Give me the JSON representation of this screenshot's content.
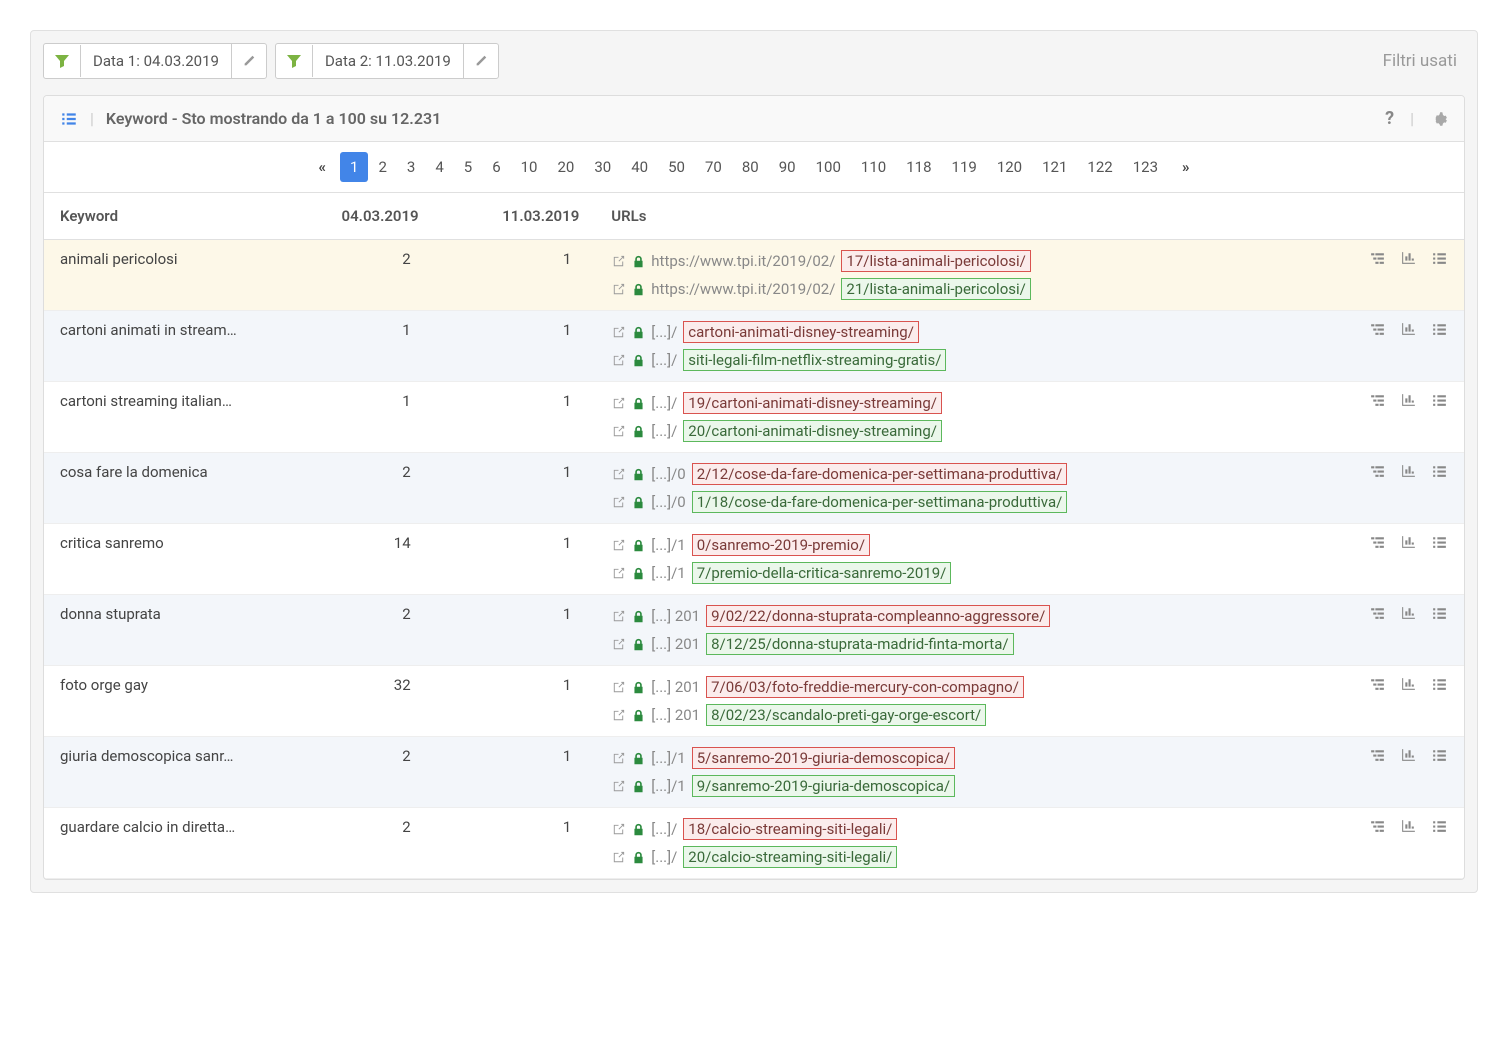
{
  "filters": {
    "data1_label": "Data 1: 04.03.2019",
    "data2_label": "Data 2: 11.03.2019",
    "used_label": "Filtri usati"
  },
  "header": {
    "title": "Keyword - Sto mostrando da 1 a 100 su 12.231"
  },
  "pagination": {
    "pages": [
      "1",
      "2",
      "3",
      "4",
      "5",
      "6",
      "10",
      "20",
      "30",
      "40",
      "50",
      "70",
      "80",
      "90",
      "100",
      "110",
      "118",
      "119",
      "120",
      "121",
      "122",
      "123"
    ]
  },
  "columns": {
    "keyword": "Keyword",
    "d1": "04.03.2019",
    "d2": "11.03.2019",
    "urls": "URLs"
  },
  "rows": [
    {
      "keyword": "animali pericolosi",
      "d1": "2",
      "d2": "1",
      "highlight": true,
      "urls": [
        {
          "prefix": "https://www.tpi.it/2019/02/",
          "boxed": "17/lista-animali-pericolosi/",
          "color": "red"
        },
        {
          "prefix": "https://www.tpi.it/2019/02/",
          "boxed": "21/lista-animali-pericolosi/",
          "color": "green"
        }
      ]
    },
    {
      "keyword": "cartoni animati in stream…",
      "d1": "1",
      "d2": "1",
      "urls": [
        {
          "prefix": "[...]/",
          "boxed": "cartoni-animati-disney-streaming/",
          "color": "red"
        },
        {
          "prefix": "[...]/",
          "boxed": "siti-legali-film-netflix-streaming-gratis/",
          "color": "green"
        }
      ]
    },
    {
      "keyword": "cartoni streaming italian…",
      "d1": "1",
      "d2": "1",
      "urls": [
        {
          "prefix": "[...]/",
          "boxed": "19/cartoni-animati-disney-streaming/",
          "color": "red"
        },
        {
          "prefix": "[...]/",
          "boxed": "20/cartoni-animati-disney-streaming/",
          "color": "green"
        }
      ]
    },
    {
      "keyword": "cosa fare la domenica",
      "d1": "2",
      "d2": "1",
      "urls": [
        {
          "prefix": "[...]/0",
          "boxed": "2/12/cose-da-fare-domenica-per-settimana-produttiva/",
          "color": "red"
        },
        {
          "prefix": "[...]/0",
          "boxed": "1/18/cose-da-fare-domenica-per-settimana-produttiva/",
          "color": "green"
        }
      ]
    },
    {
      "keyword": "critica sanremo",
      "d1": "14",
      "d2": "1",
      "urls": [
        {
          "prefix": "[...]/1",
          "boxed": "0/sanremo-2019-premio/",
          "color": "red"
        },
        {
          "prefix": "[...]/1",
          "boxed": "7/premio-della-critica-sanremo-2019/",
          "color": "green"
        }
      ]
    },
    {
      "keyword": "donna stuprata",
      "d1": "2",
      "d2": "1",
      "urls": [
        {
          "prefix": "[...] 201",
          "boxed": "9/02/22/donna-stuprata-compleanno-aggressore/",
          "color": "red"
        },
        {
          "prefix": "[...] 201",
          "boxed": "8/12/25/donna-stuprata-madrid-finta-morta/",
          "color": "green"
        }
      ]
    },
    {
      "keyword": "foto orge gay",
      "d1": "32",
      "d2": "1",
      "urls": [
        {
          "prefix": "[...] 201",
          "boxed": "7/06/03/foto-freddie-mercury-con-compagno/",
          "color": "red"
        },
        {
          "prefix": "[...] 201",
          "boxed": "8/02/23/scandalo-preti-gay-orge-escort/",
          "color": "green"
        }
      ]
    },
    {
      "keyword": "giuria demoscopica sanr…",
      "d1": "2",
      "d2": "1",
      "urls": [
        {
          "prefix": "[...]/1",
          "boxed": "5/sanremo-2019-giuria-demoscopica/",
          "color": "red"
        },
        {
          "prefix": "[...]/1",
          "boxed": "9/sanremo-2019-giuria-demoscopica/",
          "color": "green"
        }
      ]
    },
    {
      "keyword": "guardare calcio in diretta…",
      "d1": "2",
      "d2": "1",
      "urls": [
        {
          "prefix": "[...]/",
          "boxed": "18/calcio-streaming-siti-legali/",
          "color": "red"
        },
        {
          "prefix": "[...]/",
          "boxed": "20/calcio-streaming-siti-legali/",
          "color": "green"
        }
      ]
    }
  ],
  "colors": {
    "filter_icon": "#7cb342",
    "page_active_bg": "#4285e8",
    "lock": "#2b8a3e",
    "red_border": "#d9534f",
    "green_border": "#5cb85c"
  }
}
